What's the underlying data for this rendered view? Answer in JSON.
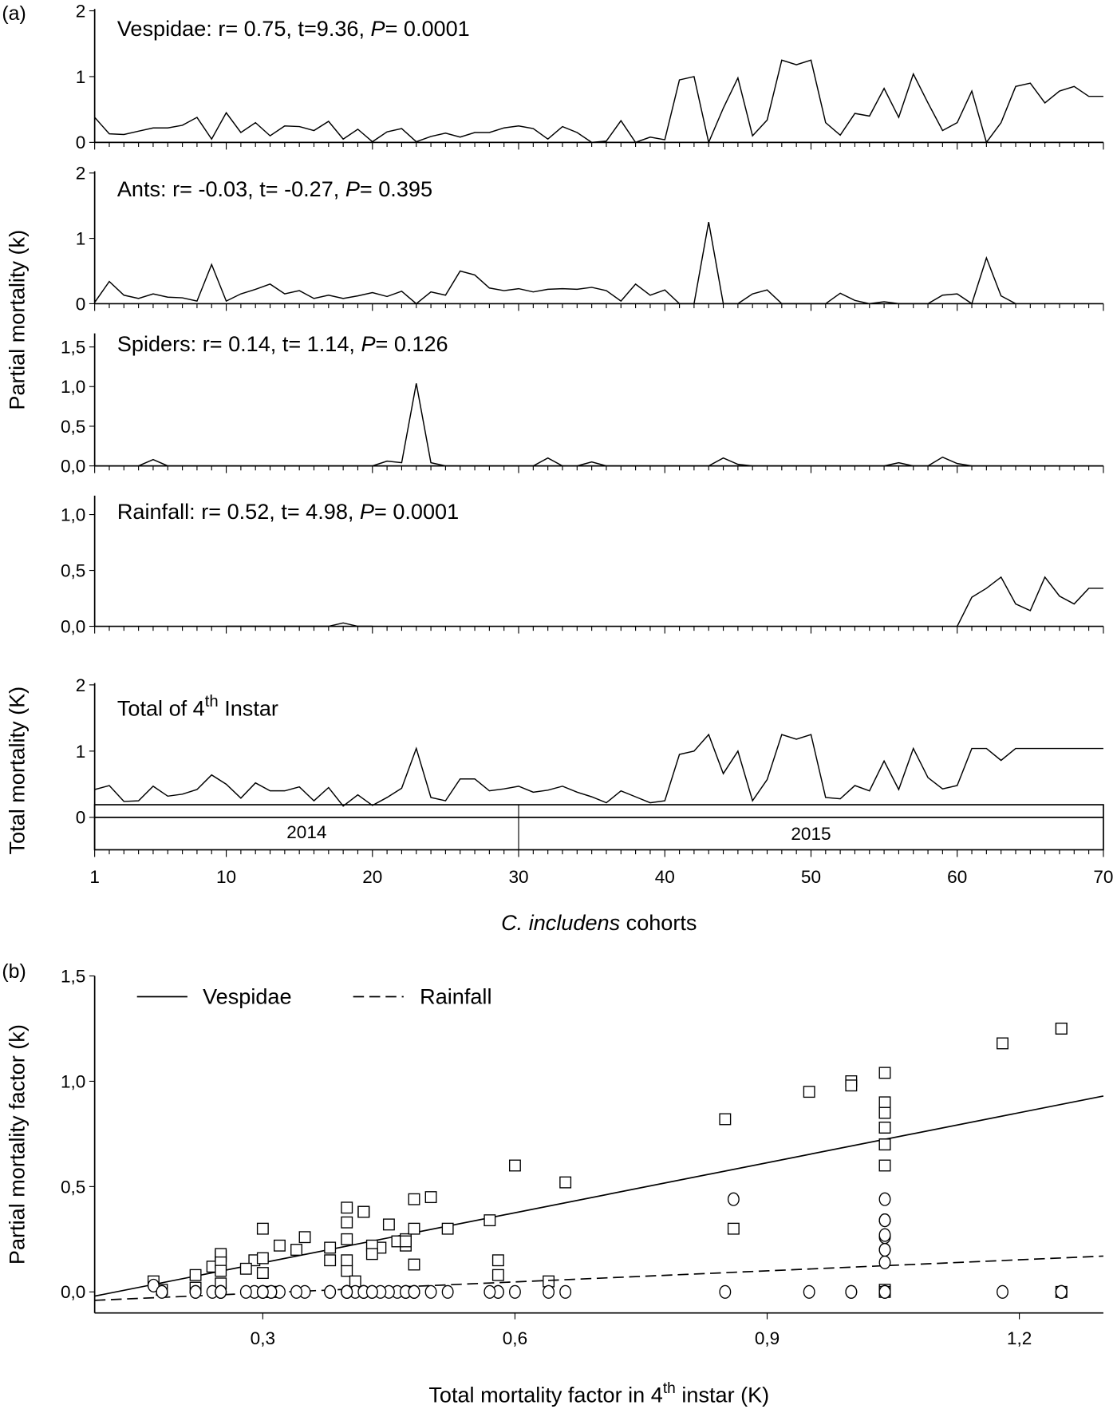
{
  "chart_data": [
    {
      "type": "line",
      "panel_label": "(a)",
      "xlabel_italic": "C. includens",
      "xlabel_rest": " cohorts",
      "ylabel_partial": "Partial mortality (k)",
      "ylabel_total": "Total mortality (K)",
      "x_ticks": [
        "1",
        "10",
        "20",
        "30",
        "40",
        "50",
        "60",
        "70"
      ],
      "xlim": [
        1,
        70
      ],
      "year_labels": [
        "2014",
        "2015"
      ],
      "year_split_cohort": 30,
      "panels": [
        {
          "name": "Vespidae",
          "ann_pre": "Vespidae: r= 0.75, t=9.36, ",
          "ann_p": "P",
          "ann_post": "= 0.0001",
          "ylim": [
            0,
            2
          ],
          "y_ticks": [
            "0",
            "1",
            "2"
          ],
          "y_tick_values": [
            0,
            1,
            2
          ],
          "values": [
            0.38,
            0.13,
            0.12,
            0.17,
            0.22,
            0.22,
            0.26,
            0.38,
            0.05,
            0.45,
            0.15,
            0.3,
            0.1,
            0.25,
            0.24,
            0.18,
            0.32,
            0.05,
            0.2,
            0.01,
            0.16,
            0.21,
            0.01,
            0.09,
            0.14,
            0.08,
            0.15,
            0.15,
            0.22,
            0.25,
            0.21,
            0.05,
            0.24,
            0.15,
            0.0,
            0.02,
            0.33,
            0.0,
            0.08,
            0.04,
            0.95,
            1.0,
            0.0,
            0.52,
            0.98,
            0.1,
            0.34,
            1.25,
            1.18,
            1.25,
            0.3,
            0.11,
            0.44,
            0.4,
            0.82,
            0.38,
            1.04,
            0.6,
            0.18,
            0.3,
            0.78,
            0.0,
            0.3,
            0.85,
            0.9,
            0.6,
            0.78,
            0.85,
            0.7,
            0.7
          ]
        },
        {
          "name": "Ants",
          "ann_pre": "Ants: r= -0.03, t= -0.27, ",
          "ann_p": "P",
          "ann_post": "= 0.395",
          "ylim": [
            0,
            2
          ],
          "y_ticks": [
            "0",
            "1",
            "2"
          ],
          "y_tick_values": [
            0,
            1,
            2
          ],
          "values": [
            0.02,
            0.34,
            0.13,
            0.08,
            0.15,
            0.1,
            0.09,
            0.04,
            0.6,
            0.04,
            0.15,
            0.22,
            0.3,
            0.15,
            0.2,
            0.08,
            0.13,
            0.08,
            0.12,
            0.17,
            0.11,
            0.19,
            0.0,
            0.18,
            0.13,
            0.5,
            0.44,
            0.24,
            0.2,
            0.23,
            0.18,
            0.22,
            0.23,
            0.22,
            0.25,
            0.2,
            0.04,
            0.3,
            0.13,
            0.21,
            0,
            0,
            1.25,
            0,
            0,
            0.15,
            0.21,
            0,
            0,
            0,
            0,
            0.16,
            0.05,
            0,
            0.03,
            0,
            0,
            0,
            0.13,
            0.15,
            0,
            0.7,
            0.12,
            0,
            null,
            null,
            null,
            null,
            null,
            null
          ]
        },
        {
          "name": "Spiders",
          "ann_pre": "Spiders: r= 0.14, t= 1.14, ",
          "ann_p": "P",
          "ann_post": "= 0.126",
          "ylim": [
            0,
            1.5
          ],
          "y_ticks": [
            "0,0",
            "0,5",
            "1,0",
            "1,5"
          ],
          "y_tick_values": [
            0,
            0.5,
            1,
            1.5
          ],
          "values": [
            null,
            null,
            null,
            0,
            0.08,
            0,
            0,
            0,
            0,
            0,
            0,
            0,
            0,
            0,
            0,
            0,
            0,
            0,
            0,
            0,
            0.06,
            0.04,
            1.04,
            0.04,
            0,
            0,
            0,
            0,
            0,
            0,
            0,
            0.1,
            0,
            0,
            0.05,
            0,
            0,
            0,
            0,
            0,
            0,
            0,
            0,
            0.1,
            0.02,
            0,
            0,
            0,
            0,
            0,
            0,
            0,
            0,
            0,
            0,
            0.04,
            0,
            0,
            0.11,
            0.03,
            0,
            null,
            null,
            null,
            null,
            null,
            null,
            null,
            null,
            null
          ]
        },
        {
          "name": "Rainfall",
          "ann_pre": "Rainfall: r= 0.52, t= 4.98, ",
          "ann_p": "P",
          "ann_post": "= 0.0001",
          "ylim": [
            0,
            1.0
          ],
          "y_ticks": [
            "0,0",
            "0,5",
            "1,0"
          ],
          "y_tick_values": [
            0,
            0.5,
            1
          ],
          "values": [
            null,
            null,
            null,
            null,
            null,
            null,
            null,
            null,
            null,
            0,
            0,
            0,
            0,
            0,
            0,
            0,
            0,
            0.03,
            0,
            0,
            null,
            null,
            null,
            null,
            null,
            null,
            null,
            null,
            null,
            null,
            null,
            null,
            null,
            null,
            null,
            null,
            null,
            null,
            null,
            null,
            null,
            null,
            null,
            null,
            null,
            null,
            null,
            null,
            null,
            null,
            null,
            null,
            null,
            null,
            null,
            null,
            null,
            null,
            null,
            0,
            0.26,
            0.34,
            0.44,
            0.2,
            0.14,
            0.44,
            0.27,
            0.2,
            0.34,
            0.34
          ]
        },
        {
          "name": "Total",
          "ann_pre": "Total of 4",
          "ann_sup": "th",
          "ann_post": " Instar",
          "ylim": [
            0,
            2
          ],
          "y_ticks": [
            "0",
            "1",
            "2"
          ],
          "y_tick_values": [
            0,
            1,
            2
          ],
          "values": [
            0.42,
            0.48,
            0.24,
            0.25,
            0.47,
            0.32,
            0.35,
            0.42,
            0.64,
            0.5,
            0.29,
            0.52,
            0.4,
            0.4,
            0.46,
            0.25,
            0.45,
            0.17,
            0.34,
            0.18,
            0.3,
            0.44,
            1.04,
            0.3,
            0.25,
            0.58,
            0.58,
            0.4,
            0.43,
            0.47,
            0.38,
            0.41,
            0.47,
            0.38,
            0.31,
            0.22,
            0.4,
            0.31,
            0.22,
            0.25,
            0.95,
            1.0,
            1.25,
            0.66,
            1.0,
            0.25,
            0.57,
            1.25,
            1.18,
            1.25,
            0.3,
            0.28,
            0.48,
            0.4,
            0.85,
            0.42,
            1.04,
            0.6,
            0.43,
            0.48,
            1.04,
            1.04,
            0.86,
            1.04,
            1.04,
            1.04,
            1.04,
            1.04,
            1.04,
            1.04
          ]
        }
      ]
    },
    {
      "type": "scatter",
      "panel_label": "(b)",
      "xlabel_pre": "Total mortality factor in 4",
      "xlabel_sup": "th",
      "xlabel_post": " instar (K)",
      "ylabel": "Partial mortality factor (k)",
      "xlim": [
        0.1,
        1.3
      ],
      "ylim": [
        -0.1,
        1.5
      ],
      "x_ticks": [
        "0,3",
        "0,6",
        "0,9",
        "1,2"
      ],
      "x_tick_values": [
        0.3,
        0.6,
        0.9,
        1.2
      ],
      "y_ticks": [
        "0,0",
        "0,5",
        "1,0",
        "1,5"
      ],
      "y_tick_values": [
        0,
        0.5,
        1,
        1.5
      ],
      "legend": [
        "Vespidae",
        "Rainfall"
      ],
      "legend_placement": "top-left",
      "series": [
        {
          "name": "Vespidae",
          "marker": "square",
          "line": "solid",
          "fit": [
            [
              0.1,
              -0.02
            ],
            [
              1.3,
              0.93
            ]
          ],
          "x": [
            0.42,
            0.48,
            0.24,
            0.25,
            0.47,
            0.32,
            0.35,
            0.42,
            0.64,
            0.5,
            0.29,
            0.52,
            0.4,
            0.4,
            0.46,
            0.25,
            0.45,
            0.17,
            0.34,
            0.18,
            0.3,
            0.44,
            1.04,
            0.3,
            0.25,
            0.58,
            0.58,
            0.4,
            0.43,
            0.47,
            0.38,
            0.41,
            0.47,
            0.38,
            0.31,
            0.22,
            0.4,
            0.31,
            0.22,
            0.25,
            0.95,
            1.0,
            1.25,
            0.66,
            1.0,
            0.25,
            0.57,
            1.25,
            1.18,
            1.25,
            0.3,
            0.28,
            0.48,
            0.4,
            0.85,
            0.42,
            1.04,
            0.6,
            0.43,
            0.48,
            1.04,
            1.04,
            0.86,
            1.04,
            1.04,
            1.04,
            1.04,
            1.04,
            1.04,
            1.04
          ],
          "y": [
            0.38,
            0.13,
            0.12,
            0.17,
            0.22,
            0.22,
            0.26,
            0.38,
            0.05,
            0.45,
            0.15,
            0.3,
            0.1,
            0.25,
            0.24,
            0.18,
            0.32,
            0.05,
            0.2,
            0.01,
            0.16,
            0.21,
            0.01,
            0.09,
            0.14,
            0.08,
            0.15,
            0.15,
            0.22,
            0.25,
            0.21,
            0.05,
            0.24,
            0.15,
            0.0,
            0.02,
            0.33,
            0.0,
            0.08,
            0.04,
            0.95,
            1.0,
            0.0,
            0.52,
            0.98,
            0.1,
            0.34,
            1.25,
            1.18,
            1.25,
            0.3,
            0.11,
            0.44,
            0.4,
            0.82,
            0.38,
            1.04,
            0.6,
            0.18,
            0.3,
            0.78,
            0.0,
            0.3,
            0.85,
            0.9,
            0.6,
            0.78,
            0.85,
            0.7,
            0.7
          ]
        },
        {
          "name": "Rainfall",
          "marker": "circle",
          "line": "dashed",
          "fit": [
            [
              0.1,
              -0.04
            ],
            [
              1.3,
              0.17
            ]
          ],
          "x": [
            0.42,
            0.48,
            0.24,
            0.25,
            0.47,
            0.32,
            0.35,
            0.42,
            0.64,
            0.5,
            0.29,
            0.52,
            0.4,
            0.4,
            0.46,
            0.25,
            0.45,
            0.17,
            0.34,
            0.18,
            0.3,
            0.44,
            1.04,
            0.3,
            0.25,
            0.58,
            0.58,
            0.4,
            0.43,
            0.47,
            0.38,
            0.41,
            0.47,
            0.38,
            0.31,
            0.22,
            0.4,
            0.31,
            0.22,
            0.25,
            0.95,
            1.0,
            1.25,
            0.66,
            1.0,
            0.25,
            0.57,
            1.25,
            1.18,
            1.25,
            0.3,
            0.28,
            0.48,
            0.4,
            0.85,
            0.42,
            1.04,
            0.6,
            0.43,
            0.48,
            1.04,
            1.04,
            0.86,
            1.04,
            1.04,
            1.04,
            1.04,
            1.04,
            1.04,
            1.04
          ],
          "y": [
            0,
            0,
            0,
            0,
            0,
            0,
            0,
            0,
            0,
            0,
            0,
            0,
            0,
            0,
            0,
            0,
            0,
            0.03,
            0,
            0,
            0,
            0,
            0,
            0,
            0,
            0,
            0,
            0,
            0,
            0,
            0,
            0,
            0,
            0,
            0,
            0,
            0,
            0,
            0,
            0,
            0,
            0,
            0,
            0,
            0,
            0,
            0,
            0,
            0,
            0,
            0,
            0,
            0,
            0,
            0,
            0,
            0,
            0,
            0,
            0,
            0.26,
            0.34,
            0.44,
            0.2,
            0.14,
            0.44,
            0.27,
            0.2,
            0.34,
            0.34
          ]
        }
      ]
    }
  ]
}
